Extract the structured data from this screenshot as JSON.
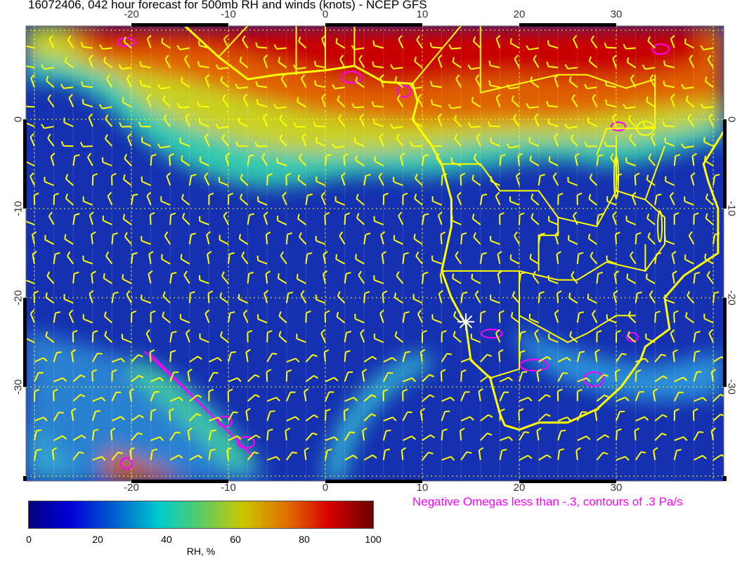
{
  "title": "16072406, 042 hour forecast for 500mb RH and winds (knots) - NCEP GFS",
  "map": {
    "lon_range": [
      -31,
      41
    ],
    "lat_range": [
      -40.5,
      10.5
    ],
    "lon_ticks": [
      "-20",
      "-10",
      "0",
      "10",
      "20",
      "30"
    ],
    "lon_tick_values": [
      -20,
      -10,
      0,
      10,
      20,
      30
    ],
    "lat_ticks": [
      "0",
      "-10",
      "-20",
      "-30"
    ],
    "lat_tick_values": [
      0,
      -10,
      -20,
      -30
    ],
    "coastline_color": "#ffff00",
    "omega_contour_color": "#ff00ff",
    "wind_barb_color": "#ffff00",
    "gridlines": "dotted yellow",
    "marker": {
      "icon": "white-star",
      "lon": 14.5,
      "lat": -22.7
    }
  },
  "colorbar": {
    "ticks": [
      "0",
      "20",
      "40",
      "60",
      "80",
      "100"
    ],
    "label": "RH, %",
    "colors": [
      "#00007f",
      "#0000d8",
      "#00cccc",
      "#c8c800",
      "#d80000",
      "#6a0000"
    ]
  },
  "note": "Negative Omegas less than -.3, contours of .3 Pa/s"
}
